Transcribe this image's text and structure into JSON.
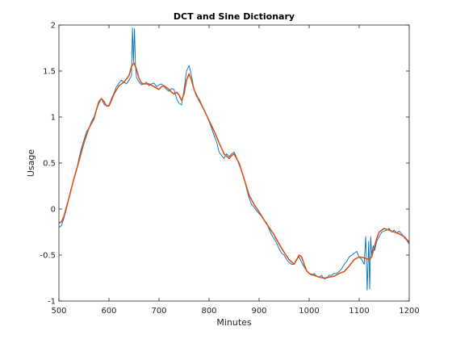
{
  "chart_data": {
    "type": "line",
    "title": "DCT and Sine Dictionary",
    "xlabel": "Minutes",
    "ylabel": "Usage",
    "xlim": [
      500,
      1200
    ],
    "ylim": [
      -1,
      2
    ],
    "xticks": [
      500,
      600,
      700,
      800,
      900,
      1000,
      1100,
      1200
    ],
    "yticks": [
      -1,
      -0.5,
      0,
      0.5,
      1,
      1.5,
      2
    ],
    "grid": false,
    "legend": "none",
    "series": [
      {
        "color": "#0072BD",
        "x": [
          500,
          505,
          510,
          515,
          520,
          525,
          530,
          535,
          540,
          545,
          550,
          555,
          560,
          565,
          570,
          575,
          580,
          585,
          590,
          595,
          600,
          605,
          610,
          615,
          620,
          625,
          630,
          635,
          640,
          645,
          647,
          649,
          651,
          653,
          655,
          660,
          665,
          670,
          675,
          680,
          685,
          690,
          695,
          700,
          705,
          710,
          715,
          720,
          725,
          730,
          735,
          740,
          745,
          750,
          755,
          760,
          765,
          770,
          775,
          780,
          785,
          790,
          795,
          800,
          805,
          810,
          815,
          820,
          825,
          830,
          835,
          840,
          845,
          850,
          855,
          860,
          865,
          870,
          875,
          880,
          885,
          890,
          895,
          900,
          905,
          910,
          915,
          920,
          925,
          930,
          935,
          940,
          945,
          950,
          955,
          960,
          965,
          970,
          975,
          980,
          985,
          990,
          995,
          1000,
          1005,
          1010,
          1015,
          1020,
          1025,
          1030,
          1035,
          1040,
          1045,
          1050,
          1055,
          1060,
          1065,
          1070,
          1075,
          1080,
          1085,
          1090,
          1095,
          1100,
          1105,
          1110,
          1113,
          1116,
          1119,
          1121,
          1123,
          1125,
          1128,
          1131,
          1135,
          1140,
          1145,
          1150,
          1155,
          1160,
          1165,
          1170,
          1175,
          1180,
          1185,
          1190,
          1195,
          1200
        ],
        "y": [
          -0.2,
          -0.18,
          -0.1,
          0.0,
          0.12,
          0.22,
          0.33,
          0.42,
          0.55,
          0.66,
          0.75,
          0.84,
          0.88,
          0.95,
          1.0,
          1.08,
          1.15,
          1.2,
          1.14,
          1.12,
          1.13,
          1.2,
          1.26,
          1.33,
          1.37,
          1.4,
          1.38,
          1.36,
          1.4,
          1.45,
          1.97,
          1.6,
          1.96,
          1.55,
          1.43,
          1.38,
          1.35,
          1.36,
          1.38,
          1.34,
          1.36,
          1.37,
          1.33,
          1.35,
          1.36,
          1.33,
          1.3,
          1.28,
          1.31,
          1.3,
          1.2,
          1.15,
          1.13,
          1.3,
          1.5,
          1.56,
          1.45,
          1.3,
          1.22,
          1.2,
          1.14,
          1.07,
          1.02,
          0.95,
          0.88,
          0.8,
          0.73,
          0.62,
          0.58,
          0.55,
          0.6,
          0.57,
          0.6,
          0.62,
          0.56,
          0.48,
          0.42,
          0.33,
          0.22,
          0.12,
          0.05,
          0.02,
          -0.02,
          -0.05,
          -0.08,
          -0.12,
          -0.15,
          -0.22,
          -0.28,
          -0.32,
          -0.37,
          -0.43,
          -0.48,
          -0.5,
          -0.55,
          -0.58,
          -0.6,
          -0.6,
          -0.55,
          -0.52,
          -0.58,
          -0.63,
          -0.67,
          -0.7,
          -0.72,
          -0.7,
          -0.73,
          -0.74,
          -0.72,
          -0.76,
          -0.75,
          -0.72,
          -0.72,
          -0.7,
          -0.7,
          -0.68,
          -0.65,
          -0.6,
          -0.57,
          -0.52,
          -0.5,
          -0.48,
          -0.46,
          -0.52,
          -0.55,
          -0.6,
          -0.3,
          -0.88,
          -0.35,
          -0.87,
          -0.3,
          -0.5,
          -0.4,
          -0.45,
          -0.35,
          -0.3,
          -0.25,
          -0.24,
          -0.23,
          -0.21,
          -0.25,
          -0.23,
          -0.26,
          -0.24,
          -0.27,
          -0.31,
          -0.34,
          -0.38
        ]
      },
      {
        "color": "#D95319",
        "x": [
          500,
          505,
          510,
          515,
          520,
          530,
          540,
          550,
          560,
          570,
          575,
          580,
          585,
          590,
          595,
          600,
          605,
          610,
          620,
          630,
          640,
          645,
          650,
          655,
          660,
          665,
          670,
          680,
          690,
          700,
          705,
          710,
          715,
          720,
          725,
          730,
          735,
          740,
          745,
          750,
          755,
          760,
          765,
          770,
          780,
          790,
          800,
          810,
          820,
          830,
          840,
          845,
          850,
          855,
          860,
          870,
          880,
          890,
          900,
          910,
          920,
          930,
          940,
          950,
          960,
          970,
          975,
          980,
          985,
          990,
          995,
          1000,
          1010,
          1020,
          1030,
          1040,
          1050,
          1060,
          1070,
          1080,
          1090,
          1100,
          1110,
          1120,
          1125,
          1130,
          1135,
          1140,
          1150,
          1160,
          1170,
          1180,
          1190,
          1200
        ],
        "y": [
          -0.15,
          -0.14,
          -0.08,
          0.02,
          0.12,
          0.33,
          0.52,
          0.72,
          0.88,
          0.98,
          1.08,
          1.17,
          1.2,
          1.17,
          1.12,
          1.12,
          1.18,
          1.25,
          1.34,
          1.38,
          1.45,
          1.55,
          1.59,
          1.52,
          1.42,
          1.37,
          1.36,
          1.36,
          1.33,
          1.3,
          1.33,
          1.34,
          1.32,
          1.3,
          1.27,
          1.25,
          1.27,
          1.24,
          1.18,
          1.25,
          1.4,
          1.47,
          1.4,
          1.3,
          1.18,
          1.08,
          0.96,
          0.85,
          0.72,
          0.6,
          0.55,
          0.58,
          0.6,
          0.55,
          0.5,
          0.33,
          0.15,
          0.05,
          -0.03,
          -0.12,
          -0.2,
          -0.28,
          -0.38,
          -0.47,
          -0.55,
          -0.6,
          -0.55,
          -0.5,
          -0.52,
          -0.6,
          -0.67,
          -0.7,
          -0.72,
          -0.74,
          -0.75,
          -0.74,
          -0.73,
          -0.7,
          -0.68,
          -0.62,
          -0.55,
          -0.52,
          -0.53,
          -0.55,
          -0.52,
          -0.42,
          -0.32,
          -0.25,
          -0.21,
          -0.23,
          -0.25,
          -0.27,
          -0.3,
          -0.36
        ]
      }
    ]
  }
}
